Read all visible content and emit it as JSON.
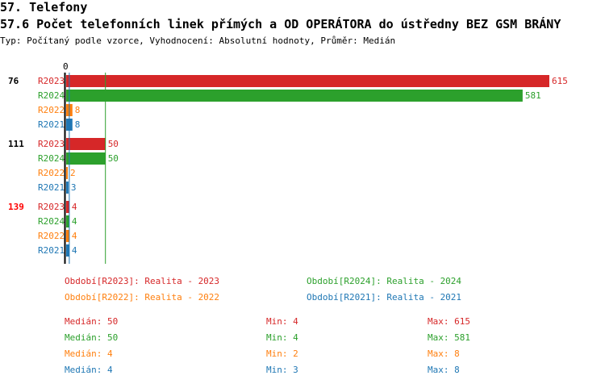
{
  "header": {
    "section": "57. Telefony",
    "title": "57.6 Počet telefonních linek přímých a OD OPERÁTORA do ústředny BEZ GSM BRÁNY",
    "subtitle": "Typ: Počítaný podle vzorce, Vyhodnocení: Absolutní hodnoty, Průměr: Medián"
  },
  "chart_data": {
    "type": "bar",
    "orientation": "horizontal",
    "x_tick_labels": [
      "0"
    ],
    "xlim": [
      0,
      615
    ],
    "categories": [
      "76",
      "111",
      "139"
    ],
    "category_colors": [
      "#000000",
      "#000000",
      "#ff0000"
    ],
    "series": [
      {
        "name": "R2023",
        "color": "#d62728",
        "values": [
          615,
          50,
          4
        ]
      },
      {
        "name": "R2024",
        "color": "#2ca02c",
        "values": [
          581,
          50,
          4
        ]
      },
      {
        "name": "R2022",
        "color": "#ff7f0e",
        "values": [
          8,
          2,
          4
        ]
      },
      {
        "name": "R2021",
        "color": "#1f77b4",
        "values": [
          8,
          3,
          4
        ]
      }
    ],
    "median_lines": [
      {
        "series": "R2024",
        "value": 50,
        "color": "#2ca02c"
      },
      {
        "series": "R2021",
        "value": 4,
        "color": "#1f77b4"
      }
    ]
  },
  "legend": [
    {
      "text": "Období[R2023]: Realita - 2023",
      "color": "#d62728"
    },
    {
      "text": "Období[R2024]: Realita - 2024",
      "color": "#2ca02c"
    },
    {
      "text": "Období[R2022]: Realita - 2022",
      "color": "#ff7f0e"
    },
    {
      "text": "Období[R2021]: Realita - 2021",
      "color": "#1f77b4"
    }
  ],
  "stats": [
    {
      "median": "Medián: 50",
      "min": "Min: 4",
      "max": "Max: 615",
      "color": "#d62728"
    },
    {
      "median": "Medián: 50",
      "min": "Min: 4",
      "max": "Max: 581",
      "color": "#2ca02c"
    },
    {
      "median": "Medián: 4",
      "min": "Min: 2",
      "max": "Max: 8",
      "color": "#ff7f0e"
    },
    {
      "median": "Medián: 4",
      "min": "Min: 3",
      "max": "Max: 8",
      "color": "#1f77b4"
    }
  ]
}
